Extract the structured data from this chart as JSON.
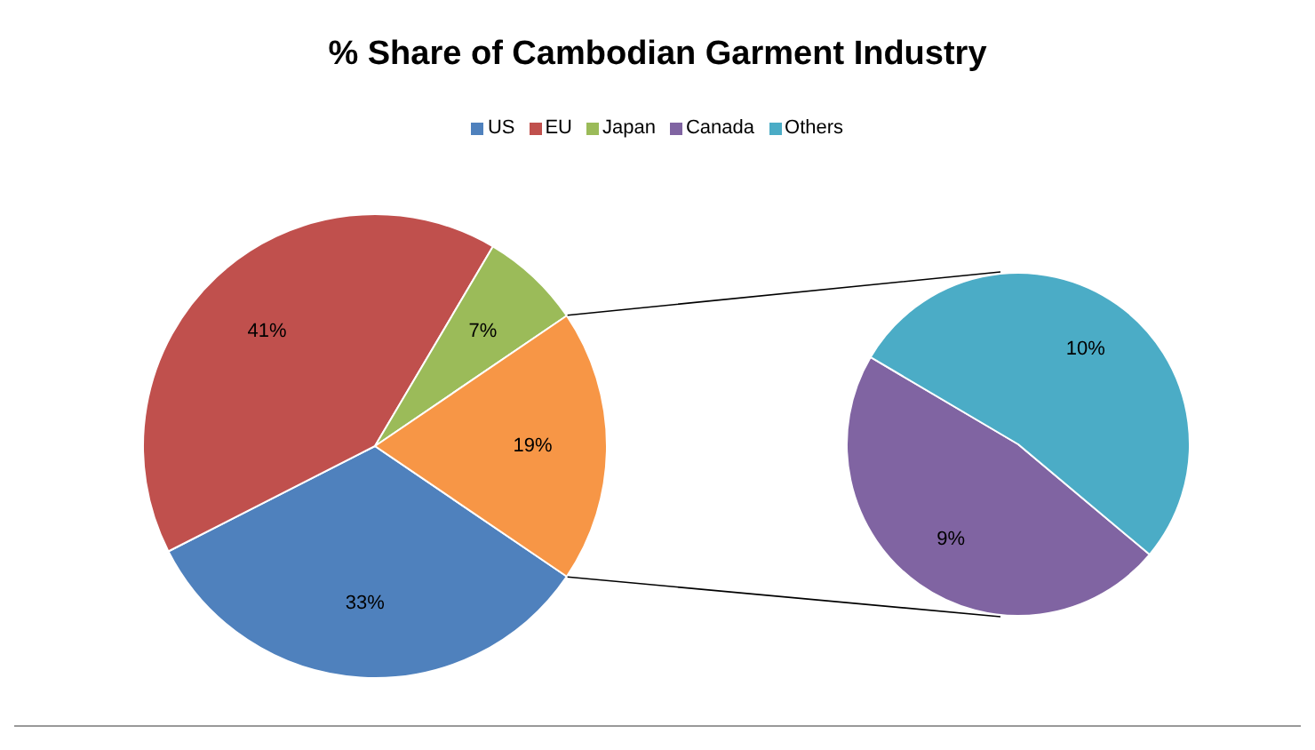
{
  "chart_data": [
    {
      "type": "pie",
      "title": "% Share of Cambodian Garment Industry",
      "legend": "top",
      "categories": [
        "US",
        "EU",
        "Japan",
        null
      ],
      "values": [
        33,
        41,
        7,
        19
      ],
      "colors": [
        "#4f81bd",
        "#c0504d",
        "#9bbb59",
        "#f79646"
      ],
      "value_labels": [
        "33%",
        "41%",
        "7%",
        "19%"
      ]
    },
    {
      "type": "pie",
      "legend": "top",
      "categories": [
        "Canada",
        "Others"
      ],
      "values": [
        9,
        10
      ],
      "colors": [
        "#8064a2",
        "#4bacc6"
      ],
      "value_labels": [
        "9%",
        "10%"
      ]
    }
  ]
}
